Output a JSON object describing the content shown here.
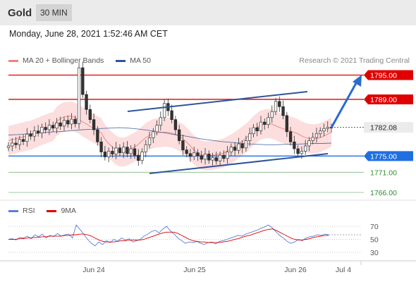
{
  "header": {
    "symbol": "Gold",
    "interval": "30 MIN"
  },
  "datetime": "Monday, June 28, 2021 1:52:46 AM CET",
  "legend": [
    {
      "label": "MA 20 + Bollinger Bands",
      "color": "#f08080"
    },
    {
      "label": "MA 50",
      "color": "#2f5597"
    }
  ],
  "credit": "Research © 2021 Trading Central",
  "rsi_legend": [
    {
      "label": "RSI",
      "color": "#5b7fd6"
    },
    {
      "label": "9MA",
      "color": "#e00000"
    }
  ],
  "chart_data": {
    "type": "line",
    "price_axis": {
      "min": 1762,
      "max": 1800
    },
    "x_labels": [
      "Jun 24",
      "Jun 25",
      "Jun 26",
      "Jul 4"
    ],
    "current_price": 1782.08,
    "levels": [
      {
        "value": 1795.0,
        "label": "1795.00",
        "kind": "resistance",
        "color": "#e00000"
      },
      {
        "value": 1789.0,
        "label": "1789.00",
        "kind": "resistance",
        "color": "#e00000"
      },
      {
        "value": 1782.08,
        "label": "1782.08",
        "kind": "last",
        "color": "#333333"
      },
      {
        "value": 1775.0,
        "label": "1775.00",
        "kind": "pivot",
        "color": "#1f6fe0"
      },
      {
        "value": 1771.0,
        "label": "1771.00",
        "kind": "support",
        "color": "#2e8b2e"
      },
      {
        "value": 1766.0,
        "label": "1766.00",
        "kind": "support",
        "color": "#2e8b2e"
      }
    ],
    "price_series": [
      1777.5,
      1778.2,
      1777.8,
      1779.1,
      1778.6,
      1780.4,
      1779.9,
      1781.2,
      1780.7,
      1782.1,
      1781.5,
      1782.6,
      1781.9,
      1783.2,
      1782.4,
      1783.8,
      1782.9,
      1784.1,
      1783.0,
      1796.8,
      1790.2,
      1786.5,
      1784.0,
      1781.5,
      1778.5,
      1776.0,
      1774.8,
      1776.2,
      1775.5,
      1777.0,
      1775.8,
      1777.2,
      1775.6,
      1776.8,
      1775.2,
      1773.9,
      1776.0,
      1777.8,
      1779.5,
      1781.0,
      1782.6,
      1784.5,
      1788.0,
      1786.2,
      1784.0,
      1781.5,
      1778.8,
      1776.5,
      1775.6,
      1774.9,
      1775.8,
      1775.1,
      1774.2,
      1775.5,
      1774.0,
      1774.6,
      1773.8,
      1775.2,
      1774.4,
      1776.0,
      1777.2,
      1776.4,
      1778.0,
      1777.0,
      1778.8,
      1780.5,
      1782.0,
      1781.2,
      1783.4,
      1782.8,
      1784.5,
      1786.0,
      1788.5,
      1787.2,
      1785.0,
      1781.0,
      1778.5,
      1776.8,
      1775.6,
      1776.2,
      1777.5,
      1778.8,
      1779.6,
      1780.5,
      1781.2,
      1781.8,
      1782.1,
      1782.08
    ],
    "ma50": [
      1780.2,
      1780.3,
      1780.5,
      1780.6,
      1780.8,
      1781.0,
      1781.1,
      1781.3,
      1781.5,
      1781.6,
      1781.8,
      1781.9,
      1782.0,
      1781.9,
      1781.7,
      1781.4,
      1781.1,
      1780.7,
      1780.3,
      1780.0,
      1779.6,
      1779.2,
      1778.9,
      1778.6,
      1778.4,
      1778.2,
      1778.0,
      1777.9,
      1777.8,
      1777.8,
      1777.9,
      1777.9,
      1778.0,
      1778.1,
      1778.1,
      1778.2
    ],
    "rsi_axis": {
      "min": 20,
      "max": 80,
      "ticks": [
        70,
        50,
        30
      ]
    },
    "rsi": [
      50,
      51,
      49,
      53,
      52,
      55,
      51,
      57,
      54,
      58,
      52,
      56,
      54,
      59,
      55,
      57,
      58,
      52,
      72,
      65,
      58,
      50,
      44,
      40,
      46,
      42,
      48,
      45,
      50,
      47,
      52,
      49,
      51,
      46,
      48,
      50,
      55,
      58,
      62,
      64,
      60,
      66,
      70,
      63,
      58,
      52,
      48,
      44,
      46,
      45,
      47,
      44,
      42,
      45,
      46,
      43,
      47,
      48,
      50,
      52,
      54,
      56,
      55,
      58,
      60,
      62,
      64,
      67,
      69,
      72,
      68,
      62,
      56,
      52,
      47,
      44,
      46,
      50,
      48,
      52,
      54,
      55,
      57,
      56,
      58,
      57
    ],
    "rsi_ma": [
      50,
      50,
      50,
      51,
      51,
      52,
      52,
      53,
      53,
      54,
      54,
      55,
      55,
      55,
      55,
      56,
      56,
      57,
      57,
      58,
      58,
      57,
      55,
      52,
      49,
      47,
      46,
      46,
      46,
      47,
      48,
      48,
      49,
      49,
      49,
      49,
      50,
      52,
      54,
      56,
      58,
      60,
      61,
      61,
      61,
      59,
      56,
      53,
      50,
      48,
      47,
      46,
      46,
      45,
      45,
      45,
      45,
      46,
      47,
      48,
      50,
      51,
      53,
      55,
      56,
      58,
      60,
      62,
      64,
      65,
      66,
      64,
      61,
      58,
      55,
      52,
      50,
      49,
      49,
      50,
      51,
      53,
      54,
      55,
      56,
      56
    ]
  }
}
